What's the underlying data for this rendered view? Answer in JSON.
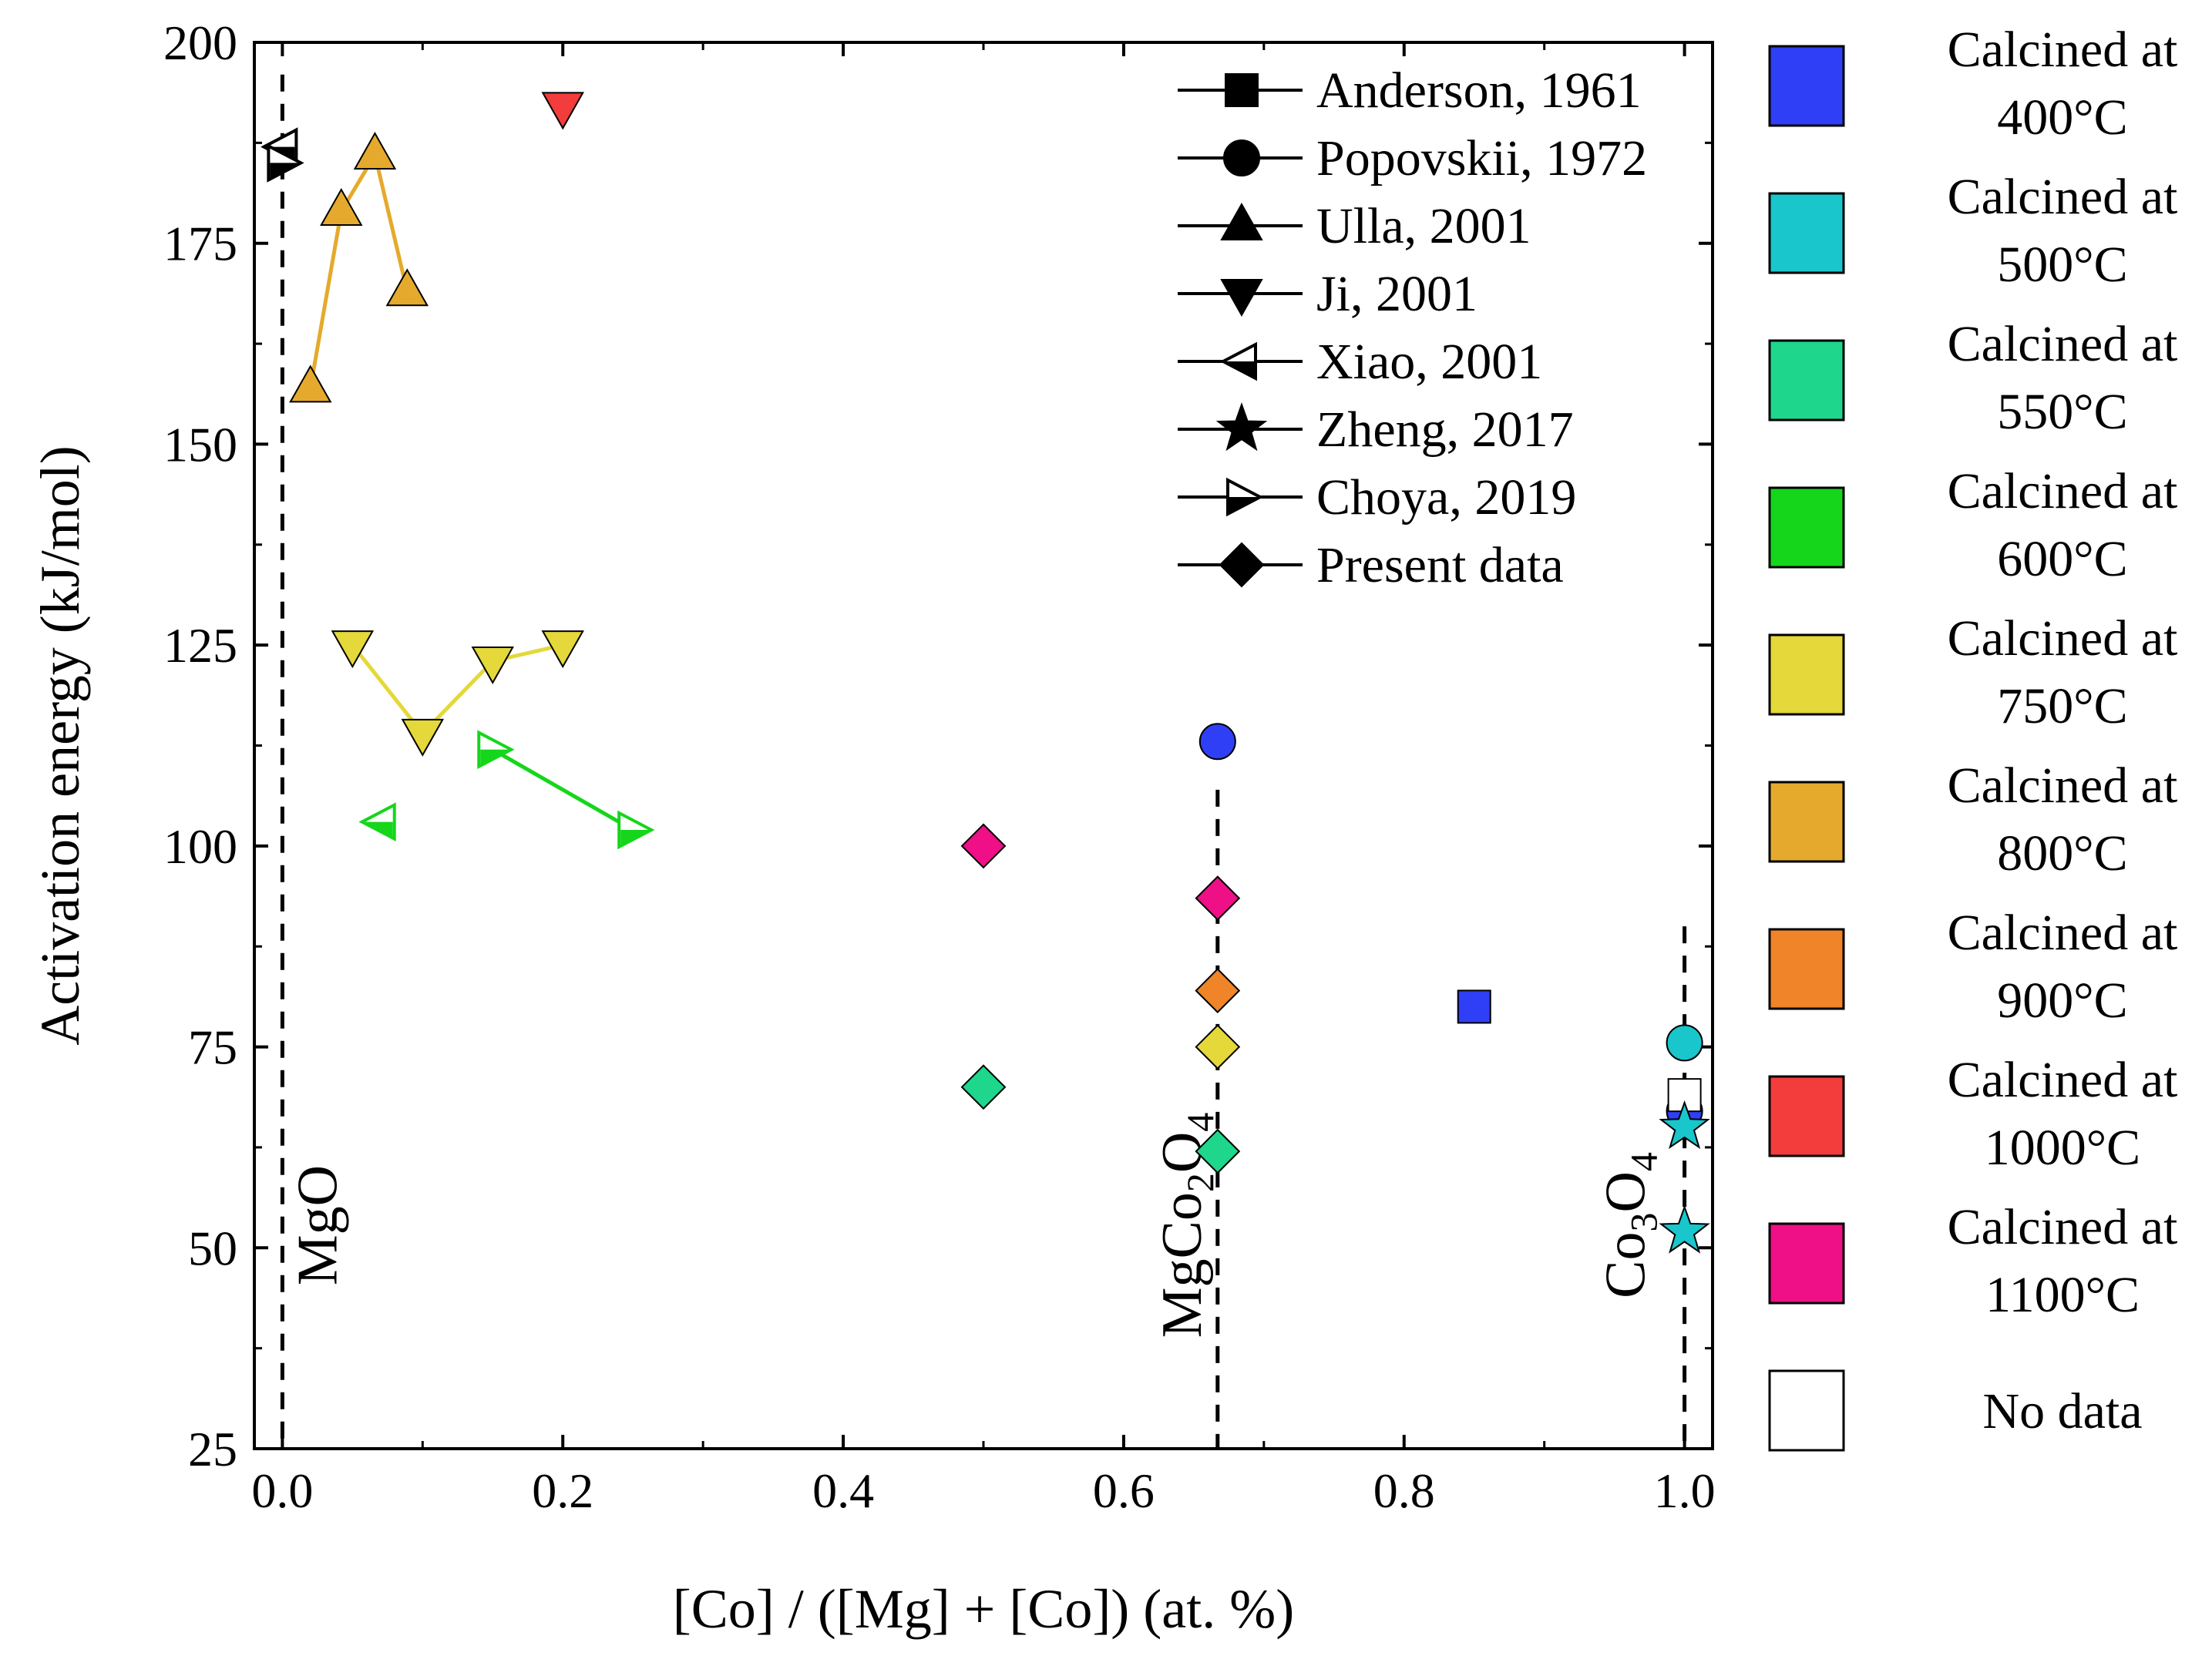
{
  "chart_data": {
    "type": "scatter",
    "title": "",
    "xlabel": "[Co] / ([Mg] + [Co]) (at. %)",
    "ylabel": "Activation energy (kJ/mol)",
    "xlim": [
      -0.02,
      1.02
    ],
    "ylim": [
      25,
      200
    ],
    "xticks": [
      0.0,
      0.2,
      0.4,
      0.6,
      0.8,
      1.0
    ],
    "xtick_labels": [
      "0.0",
      "0.2",
      "0.4",
      "0.6",
      "0.8",
      "1.0"
    ],
    "yticks": [
      25,
      50,
      75,
      100,
      125,
      150,
      175,
      200
    ],
    "ytick_labels": [
      "25",
      "50",
      "75",
      "100",
      "125",
      "150",
      "175",
      "200"
    ],
    "grid": false,
    "colors": {
      "c400": "#2f3ff5",
      "c500": "#19c6cc",
      "c550": "#1ed68c",
      "c600": "#15d61b",
      "c750": "#e4d83a",
      "c800": "#e5aa2d",
      "c900": "#ef8428",
      "c1000": "#f23d3c",
      "c1100": "#ef0f86",
      "nodata": "#ffffff"
    },
    "source_legend": [
      {
        "label": "Anderson, 1961",
        "marker": "square"
      },
      {
        "label": "Popovskii, 1972",
        "marker": "circle"
      },
      {
        "label": "Ulla, 2001",
        "marker": "triangle-up"
      },
      {
        "label": "Ji, 2001",
        "marker": "triangle-down"
      },
      {
        "label": "Xiao, 2001",
        "marker": "triangle-left-open"
      },
      {
        "label": "Zheng, 2017",
        "marker": "star"
      },
      {
        "label": "Choya, 2019",
        "marker": "triangle-right-open"
      },
      {
        "label": "Present data",
        "marker": "diamond"
      }
    ],
    "color_legend": [
      {
        "line1": "Calcined at",
        "line2": "400°C",
        "color": "c400"
      },
      {
        "line1": "Calcined at",
        "line2": "500°C",
        "color": "c500"
      },
      {
        "line1": "Calcined at",
        "line2": "550°C",
        "color": "c550"
      },
      {
        "line1": "Calcined at",
        "line2": "600°C",
        "color": "c600"
      },
      {
        "line1": "Calcined at",
        "line2": "750°C",
        "color": "c750"
      },
      {
        "line1": "Calcined at",
        "line2": "800°C",
        "color": "c800"
      },
      {
        "line1": "Calcined at",
        "line2": "900°C",
        "color": "c900"
      },
      {
        "line1": "Calcined at",
        "line2": "1000°C",
        "color": "c1000"
      },
      {
        "line1": "Calcined at",
        "line2": "1100°C",
        "color": "c1100"
      },
      {
        "line1": "No data",
        "line2": "",
        "color": "nodata"
      }
    ],
    "reference_lines": [
      {
        "x": 0.0,
        "y_from": 25,
        "y_to": 196,
        "label": "MgO",
        "label_parts": [
          {
            "t": "MgO",
            "sub": false
          }
        ]
      },
      {
        "x": 0.667,
        "y_from": 25,
        "y_to": 107,
        "label": "MgCo2O4",
        "label_parts": [
          {
            "t": "MgCo",
            "sub": false
          },
          {
            "t": "2",
            "sub": true
          },
          {
            "t": "O",
            "sub": false
          },
          {
            "t": "4",
            "sub": true
          }
        ]
      },
      {
        "x": 1.0,
        "y_from": 25,
        "y_to": 90,
        "label": "Co3O4",
        "label_parts": [
          {
            "t": "Co",
            "sub": false
          },
          {
            "t": "3",
            "sub": true
          },
          {
            "t": "O",
            "sub": false
          },
          {
            "t": "4",
            "sub": true
          }
        ]
      }
    ],
    "series": [
      {
        "name": "Ulla, 2001",
        "marker": "triangle-up",
        "color": "c800",
        "connected": true,
        "x": [
          0.02,
          0.042,
          0.066,
          0.089
        ],
        "y": [
          157,
          179,
          186,
          169
        ]
      },
      {
        "name": "Ji, 2001",
        "marker": "triangle-down",
        "color": "c750",
        "connected": true,
        "x": [
          0.05,
          0.1,
          0.15,
          0.2
        ],
        "y": [
          125,
          114,
          123,
          125
        ]
      },
      {
        "name": "Ji, 2001",
        "marker": "triangle-down",
        "color": "c1000",
        "connected": false,
        "x": [
          0.2
        ],
        "y": [
          192
        ]
      },
      {
        "name": "Choya, 2019",
        "marker": "triangle-right-open",
        "color": "c600",
        "connected": true,
        "x": [
          0.15,
          0.25
        ],
        "y": [
          112,
          102
        ]
      },
      {
        "name": "Xiao, 2001",
        "marker": "triangle-left-open",
        "color": "c600",
        "connected": false,
        "x": [
          0.07
        ],
        "y": [
          103
        ]
      },
      {
        "name": "Xiao, 2001",
        "marker": "triangle-left-open",
        "color": "nodata",
        "connected": false,
        "x": [
          0.0
        ],
        "y": [
          187
        ]
      },
      {
        "name": "Choya, 2019",
        "marker": "triangle-right-open",
        "color": "nodata",
        "connected": false,
        "x": [
          0.0
        ],
        "y": [
          185
        ]
      },
      {
        "name": "Popovskii, 1972",
        "marker": "circle",
        "color": "c400",
        "connected": false,
        "x": [
          0.667,
          1.0
        ],
        "y": [
          113,
          67
        ]
      },
      {
        "name": "Popovskii, 1972",
        "marker": "circle",
        "color": "c500",
        "connected": false,
        "x": [
          1.0
        ],
        "y": [
          75.5
        ]
      },
      {
        "name": "Anderson, 1961",
        "marker": "square",
        "color": "c400",
        "connected": false,
        "x": [
          0.85
        ],
        "y": [
          80
        ]
      },
      {
        "name": "Anderson, 1961",
        "marker": "square",
        "color": "nodata",
        "connected": false,
        "x": [
          1.0
        ],
        "y": [
          69
        ]
      },
      {
        "name": "Zheng, 2017",
        "marker": "star",
        "color": "c500",
        "connected": false,
        "x": [
          1.0,
          1.0
        ],
        "y": [
          65,
          52
        ]
      },
      {
        "name": "Present data",
        "marker": "diamond",
        "color": "c1100",
        "connected": false,
        "x": [
          0.5,
          0.667
        ],
        "y": [
          100,
          93.5
        ]
      },
      {
        "name": "Present data",
        "marker": "diamond",
        "color": "c900",
        "connected": false,
        "x": [
          0.667
        ],
        "y": [
          82
        ]
      },
      {
        "name": "Present data",
        "marker": "diamond",
        "color": "c750",
        "connected": false,
        "x": [
          0.667
        ],
        "y": [
          75
        ]
      },
      {
        "name": "Present data",
        "marker": "diamond",
        "color": "c550",
        "connected": false,
        "x": [
          0.5,
          0.667
        ],
        "y": [
          70,
          62
        ]
      }
    ]
  }
}
